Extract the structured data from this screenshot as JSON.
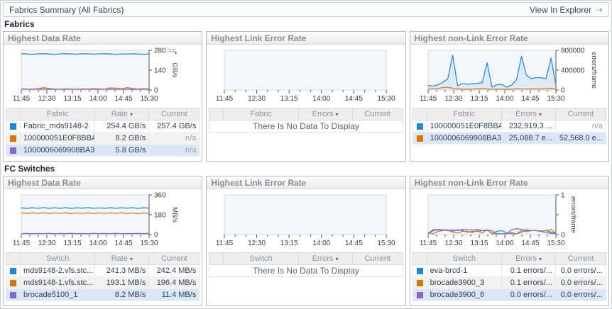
{
  "topbar": {
    "title": "Fabrics Summary (All Fabrics)",
    "action_label": "View In Explorer",
    "action_icon": "⇢"
  },
  "sort_icon": "▾",
  "x_labels": [
    "11:45",
    "12:30",
    "13:15",
    "14:00",
    "14:45",
    "15:30"
  ],
  "colors": {
    "blue": "#2a8ce0",
    "orange": "#df7b12",
    "purple": "#8568c8"
  },
  "sections": [
    {
      "label": "Fabrics",
      "panels": [
        {
          "title": "Highest Data Rate",
          "menu_icon": true,
          "chart": {
            "type": "line",
            "ymax": 280,
            "unit": "GB/s",
            "y_ticks": [
              {
                "v": 0,
                "label": "0"
              },
              {
                "v": 140,
                "label": "140"
              },
              {
                "v": 280,
                "label": "280"
              }
            ],
            "series": [
              {
                "name": "Fabric_mds9148-2",
                "color": "#2a8ce0",
                "values": [
                  256,
                  254,
                  252,
                  255,
                  256,
                  254,
                  252,
                  255,
                  256,
                  254,
                  253,
                  256,
                  255,
                  253,
                  255,
                  256,
                  254,
                  252,
                  255,
                  253,
                  256,
                  254,
                  252,
                  255
                ]
              },
              {
                "name": "100000051E0F8BBA",
                "color": "#df7b12",
                "values": [
                  8,
                  7,
                  6,
                  9,
                  17,
                  11,
                  7,
                  6,
                  8,
                  7,
                  6,
                  8,
                  7,
                  9,
                  8,
                  6,
                  15,
                  13,
                  8,
                  17,
                  11,
                  7,
                  9,
                  8
                ]
              },
              {
                "name": "1000006069908BA3",
                "color": "#8568c8",
                "values": [
                  6,
                  6,
                  5,
                  6,
                  6,
                  5,
                  6,
                  6,
                  5,
                  6,
                  6,
                  5,
                  6,
                  6,
                  5,
                  6,
                  6,
                  5,
                  6,
                  6,
                  5,
                  6,
                  6,
                  5
                ]
              }
            ]
          },
          "table": {
            "name_header": "Fabric",
            "value_header": "Rate",
            "current_header": "Current",
            "rows": [
              {
                "color": "#1e87e0",
                "name": "Fabric_mds9148-2",
                "value": "254.4 GB/s",
                "current": "257.4 GB/s"
              },
              {
                "color": "#df7300",
                "name": "100000051E0F8BBA",
                "value": "8.2 GB/s",
                "current": "n/a"
              },
              {
                "color": "#8568c8",
                "name": "1000006069908BA3",
                "value": "5.8 GB/s",
                "current": "n/a"
              }
            ]
          }
        },
        {
          "title": "Highest Link Error Rate",
          "chart": {
            "type": "line",
            "empty": true
          },
          "table": {
            "name_header": "Fabric",
            "value_header": "Errors",
            "current_header": "Current",
            "empty_text": "There Is No Data To Display"
          }
        },
        {
          "title": "Highest non-Link Error Rate",
          "chart": {
            "type": "line",
            "ymax": 800000,
            "unit": "errors/frame",
            "y_ticks": [
              {
                "v": 0,
                "label": "0"
              },
              {
                "v": 400000,
                "label": "400000"
              },
              {
                "v": 800000,
                "label": "800000"
              }
            ],
            "series": [
              {
                "name": "100000051E0F8BBA",
                "color": "#2a8ce0",
                "fill": true,
                "values": [
                  95000,
                  78000,
                  105000,
                  155000,
                  225000,
                  700000,
                  85000,
                  128000,
                  118000,
                  128000,
                  132000,
                  148000,
                  548000,
                  58000,
                  108000,
                  112000,
                  55000,
                  98000,
                  212000,
                  678000,
                  298000,
                  228000,
                  252000,
                  248000,
                  228000,
                  645000,
                  98000
                ]
              },
              {
                "name": "1000006069908BA3",
                "color": "#df7b12",
                "values": [
                  15000,
                  25000,
                  32000,
                  48000,
                  55000,
                  35000,
                  22000,
                  18000,
                  15000,
                  18000,
                  25000,
                  30000,
                  22000,
                  15000,
                  18000,
                  20000,
                  15000,
                  18000,
                  22000,
                  25000,
                  20000,
                  22000,
                  25000,
                  20000,
                  30000,
                  35000,
                  20000
                ]
              }
            ]
          },
          "table": {
            "name_header": "Fabric",
            "value_header": "Errors",
            "current_header": "Current",
            "rows": [
              {
                "color": "#1e87e0",
                "name": "100000051E0F8BBA",
                "value": "232,919.3 ...",
                "current": "n/a"
              },
              {
                "color": "#df7300",
                "name": "1000006069908BA3",
                "value": "25,088.7 e...",
                "current": "52,568.0 e..."
              }
            ]
          }
        }
      ]
    },
    {
      "label": "FC Switches",
      "panels": [
        {
          "title": "Highest Data Rate",
          "chart": {
            "type": "line",
            "ymax": 360,
            "unit": "MB/s",
            "y_ticks": [
              {
                "v": 0,
                "label": "0"
              },
              {
                "v": 180,
                "label": "180"
              },
              {
                "v": 360,
                "label": "360"
              }
            ],
            "series": [
              {
                "name": "mds9148-2.vfs.stc...",
                "color": "#2a8ce0",
                "values": [
                  243,
                  237,
                  244,
                  238,
                  245,
                  238,
                  243,
                  238,
                  244,
                  237,
                  243,
                  239,
                  245,
                  238,
                  242,
                  238,
                  244,
                  238,
                  243,
                  240,
                  244,
                  237,
                  243,
                  240
                ]
              },
              {
                "name": "mds9148-1.vfs.stc...",
                "color": "#df7b12",
                "values": [
                  197,
                  191,
                  198,
                  192,
                  198,
                  191,
                  197,
                  192,
                  198,
                  190,
                  196,
                  192,
                  198,
                  191,
                  197,
                  192,
                  197,
                  193,
                  198,
                  191,
                  197,
                  190,
                  197,
                  193
                ]
              },
              {
                "name": "brocade5100_1",
                "color": "#8568c8",
                "values": [
                  9,
                  11,
                  8,
                  10,
                  9,
                  11,
                  8,
                  10,
                  9,
                  11,
                  9,
                  10,
                  8,
                  11,
                  9,
                  10,
                  9,
                  11,
                  8,
                  10,
                  9,
                  11,
                  9,
                  10
                ]
              }
            ]
          },
          "table": {
            "name_header": "Switch",
            "value_header": "Rate",
            "current_header": "Current",
            "rows": [
              {
                "color": "#1e87e0",
                "name": "mds9148-2.vfs.stc...",
                "value": "241.3 MB/s",
                "current": "242.4 MB/s"
              },
              {
                "color": "#df7300",
                "name": "mds9148-1.vfs.stc...",
                "value": "193.1 MB/s",
                "current": "196.4 MB/s"
              },
              {
                "color": "#8568c8",
                "name": "brocade5100_1",
                "value": "8.2 MB/s",
                "current": "11.4 MB/s"
              }
            ]
          }
        },
        {
          "title": "Highest Link Error Rate",
          "chart": {
            "type": "line",
            "empty": true
          },
          "table": {
            "name_header": "Switch",
            "value_header": "Errors",
            "current_header": "Current",
            "empty_text": "There Is No Data To Display"
          }
        },
        {
          "title": "Highest non-Link Error Rate",
          "chart": {
            "type": "line",
            "ymax": 1,
            "unit": "errors/frame",
            "y_ticks": [
              {
                "v": 0,
                "label": "0"
              },
              {
                "v": 0.5,
                "label": ""
              },
              {
                "v": 1,
                "label": "1"
              }
            ],
            "series": [
              {
                "name": "eva-brcd-1",
                "color": "#2a8ce0",
                "values": [
                  0.02,
                  0.1,
                  0.12,
                  0.11,
                  0.12,
                  0.08,
                  0.12,
                  0.1,
                  0.06,
                  0.08,
                  0.08,
                  0.1,
                  0.12,
                  0.03,
                  0.08,
                  0.1,
                  0.04,
                  0.02,
                  0.02,
                  0.06,
                  0.1,
                  0.1,
                  0.1,
                  0.09,
                  0.1,
                  0.06,
                  0.04
                ]
              },
              {
                "name": "brocade3900_3",
                "color": "#df7b12",
                "values": [
                  0.05,
                  0.02,
                  0.08,
                  0.1,
                  0.12,
                  0.06,
                  0.04,
                  0.08,
                  0.08,
                  0.05,
                  0.1,
                  0.04,
                  0.12,
                  0.02,
                  0.02,
                  0.02,
                  0.02,
                  0.05,
                  0.02,
                  0.1,
                  0.07,
                  0.1,
                  0.1,
                  0.08,
                  0.1,
                  0.13,
                  0.04
                ]
              },
              {
                "name": "brocade3900_6",
                "color": "#8568c8",
                "values": [
                  0.03,
                  0.12,
                  0.13,
                  0.12,
                  0.1,
                  0.12,
                  0.1,
                  0.13,
                  0.12,
                  0.12,
                  0.13,
                  0.1,
                  0.1,
                  0.1,
                  0.02,
                  0.02,
                  0.02,
                  0.12,
                  0.15,
                  0.13,
                  0.12,
                  0.1,
                  0.1,
                  0.08,
                  0.05,
                  0.03,
                  0.03
                ]
              }
            ]
          },
          "table": {
            "name_header": "Switch",
            "value_header": "Errors",
            "current_header": "Current",
            "rows": [
              {
                "color": "#1e87e0",
                "name": "eva-brcd-1",
                "value": "0.1 errors/...",
                "current": "0.0 errors/..."
              },
              {
                "color": "#df7300",
                "name": "brocade3900_3",
                "value": "0.1 errors/...",
                "current": "0.0 errors/..."
              },
              {
                "color": "#8568c8",
                "name": "brocade3900_6",
                "value": "0.0 errors/...",
                "current": "0.0 errors/..."
              }
            ]
          }
        }
      ]
    }
  ]
}
